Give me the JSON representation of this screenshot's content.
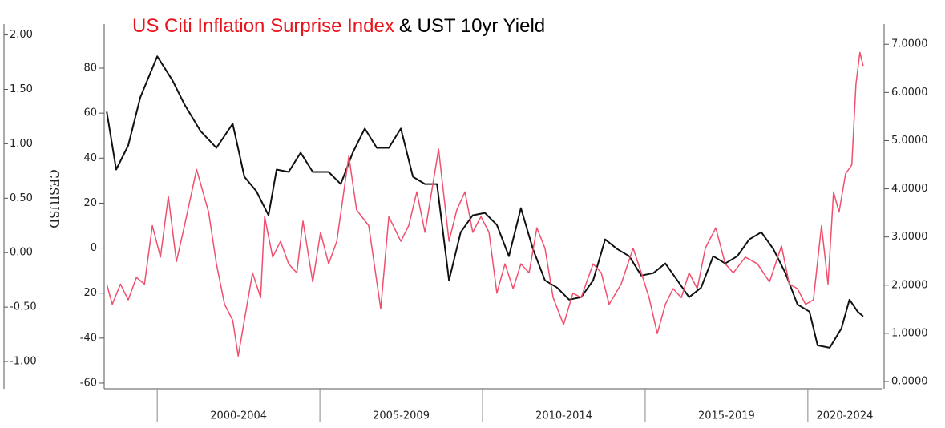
{
  "chart_data": {
    "type": "line",
    "title_segments": [
      {
        "text": "US Citi Inflation Surprise Index",
        "color": "#e8131b"
      },
      {
        "text": "& UST 10yr Yield",
        "color": "#000000"
      }
    ],
    "ylabel": "CESIUSD",
    "xlim": [
      1998.37,
      2022.27
    ],
    "x_bands": [
      {
        "label": "2000-2004",
        "start": 2000,
        "end": 2005
      },
      {
        "label": "2005-2009",
        "start": 2005,
        "end": 2010
      },
      {
        "label": "2010-2014",
        "start": 2010,
        "end": 2015
      },
      {
        "label": "2015-2019",
        "start": 2015,
        "end": 2020
      },
      {
        "label": "2020-2024",
        "start": 2020,
        "end": 2025
      }
    ],
    "ylim": [
      -62.5,
      99.6
    ],
    "yticks": [
      -60,
      -40,
      -20,
      0,
      20,
      40,
      60,
      80
    ],
    "y2lim": [
      -0.15,
      7.42
    ],
    "y2ticks": [
      {
        "value": 0,
        "label": "0.0000"
      },
      {
        "value": 1,
        "label": "1.0000"
      },
      {
        "value": 2,
        "label": "2.0000"
      },
      {
        "value": 3,
        "label": "3.0000"
      },
      {
        "value": 4,
        "label": "4.0000"
      },
      {
        "value": 5,
        "label": "5.0000"
      },
      {
        "value": 6,
        "label": "6.0000"
      },
      {
        "value": 7,
        "label": "7.0000"
      }
    ],
    "y3lim": [
      -1.25,
      2.1
    ],
    "y3ticks": [
      {
        "value": -1,
        "label": "-1.00"
      },
      {
        "value": -0.5,
        "label": "-0.50"
      },
      {
        "value": 0,
        "label": "0.00"
      },
      {
        "value": 0.5,
        "label": "0.50"
      },
      {
        "value": 1,
        "label": "1.00"
      },
      {
        "value": 1.5,
        "label": "1.50"
      },
      {
        "value": 2,
        "label": "2.00"
      }
    ],
    "series": [
      {
        "name": "UST 10yr Yield",
        "color": "#111111",
        "axis": "y2",
        "x": [
          1998.45,
          1998.74,
          1999.11,
          1999.48,
          2000,
          2000.47,
          2000.84,
          2001.33,
          2001.82,
          2002.32,
          2002.68,
          2003.05,
          2003.42,
          2003.67,
          2004.04,
          2004.41,
          2004.78,
          2005.27,
          2005.64,
          2006.01,
          2006.38,
          2006.75,
          2007.12,
          2007.49,
          2007.86,
          2008.23,
          2008.6,
          2008.97,
          2009.33,
          2009.7,
          2010.07,
          2010.44,
          2010.81,
          2011.18,
          2011.55,
          2011.92,
          2012.29,
          2012.66,
          2013.03,
          2013.4,
          2013.77,
          2014.14,
          2014.51,
          2014.88,
          2015.25,
          2015.62,
          2015.99,
          2016.35,
          2016.72,
          2017.09,
          2017.46,
          2017.83,
          2018.2,
          2018.57,
          2018.94,
          2019.31,
          2019.68,
          2020.05,
          2020.3,
          2020.67,
          2021.03,
          2021.28,
          2021.53,
          2021.7
        ],
        "values": [
          5.6,
          4.4,
          4.9,
          5.9,
          6.75,
          6.25,
          5.75,
          5.2,
          4.85,
          5.35,
          4.25,
          3.95,
          3.45,
          4.4,
          4.35,
          4.75,
          4.35,
          4.35,
          4.1,
          4.75,
          5.25,
          4.85,
          4.85,
          5.25,
          4.25,
          4.1,
          4.1,
          2.1,
          3.1,
          3.45,
          3.5,
          3.25,
          2.6,
          3.6,
          2.75,
          2.1,
          1.95,
          1.7,
          1.75,
          2.1,
          2.95,
          2.75,
          2.6,
          2.2,
          2.25,
          2.45,
          2.1,
          1.75,
          1.95,
          2.6,
          2.45,
          2.6,
          2.95,
          3.1,
          2.75,
          2.25,
          1.6,
          1.45,
          0.75,
          0.7,
          1.1,
          1.7,
          1.45,
          1.35
        ]
      },
      {
        "name": "US Citi Inflation Surprise Index",
        "color": "#f0506e",
        "axis": "y",
        "x": [
          1998.45,
          1998.62,
          1998.87,
          1999.11,
          1999.36,
          1999.61,
          1999.85,
          2000.1,
          2000.34,
          2000.59,
          2000.84,
          2001.21,
          2001.58,
          2001.82,
          2002.07,
          2002.32,
          2002.49,
          2002.68,
          2002.93,
          2003.18,
          2003.3,
          2003.55,
          2003.79,
          2004.04,
          2004.29,
          2004.48,
          2004.78,
          2005.02,
          2005.27,
          2005.52,
          2005.89,
          2006.13,
          2006.5,
          2006.87,
          2007.12,
          2007.49,
          2007.73,
          2007.98,
          2008.23,
          2008.65,
          2008.97,
          2009.21,
          2009.46,
          2009.7,
          2009.95,
          2010.2,
          2010.44,
          2010.69,
          2010.94,
          2011.18,
          2011.43,
          2011.67,
          2011.92,
          2012.17,
          2012.49,
          2012.78,
          2013.03,
          2013.4,
          2013.65,
          2013.89,
          2014.26,
          2014.63,
          2014.88,
          2015.12,
          2015.37,
          2015.62,
          2015.86,
          2016.11,
          2016.35,
          2016.6,
          2016.85,
          2017.17,
          2017.46,
          2017.71,
          2018.08,
          2018.45,
          2018.82,
          2019.19,
          2019.43,
          2019.68,
          2019.93,
          2020.17,
          2020.42,
          2020.62,
          2020.79,
          2020.96,
          2021.16,
          2021.35,
          2021.48,
          2021.6,
          2021.7
        ],
        "values": [
          -16,
          -25,
          -16,
          -23,
          -13,
          -16,
          10,
          -4,
          23,
          -6,
          10,
          35,
          16,
          -7,
          -25,
          -32,
          -48,
          -32,
          -11,
          -22,
          14,
          -4,
          3,
          -7,
          -11,
          12,
          -15,
          7,
          -7,
          3,
          41,
          17,
          10,
          -27,
          14,
          3,
          10,
          25,
          7,
          44,
          3,
          17,
          25,
          7,
          14,
          7,
          -20,
          -7,
          -18,
          -7,
          -11,
          9,
          0,
          -22,
          -34,
          -20,
          -22,
          -7,
          -11,
          -25,
          -16,
          0,
          -11,
          -22,
          -38,
          -25,
          -18,
          -22,
          -11,
          -18,
          0,
          9,
          -7,
          -11,
          -4,
          -7,
          -15,
          1,
          -16,
          -18,
          -25,
          -23,
          10,
          -16,
          25,
          16,
          33,
          37,
          73,
          87,
          81
        ]
      }
    ]
  }
}
